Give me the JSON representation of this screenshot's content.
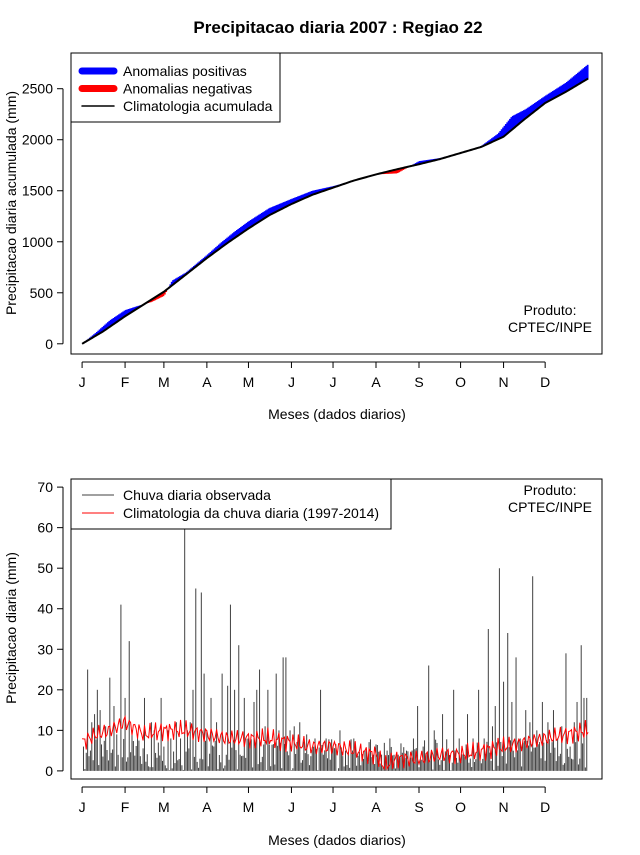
{
  "page_title": "Precipitacao diaria 2007 : Regiao 22",
  "chart_data": [
    {
      "type": "area",
      "name": "accumulated",
      "ylabel": "Precipitacao diaria acumulada (mm)",
      "xlabel": "Meses (dados diarios)",
      "month_labels": [
        "J",
        "F",
        "M",
        "A",
        "M",
        "J",
        "J",
        "A",
        "S",
        "O",
        "N",
        "D"
      ],
      "xlim": [
        -8,
        375
      ],
      "ylim": [
        -100,
        2850
      ],
      "yticks": [
        0,
        500,
        1000,
        1500,
        2000,
        2500
      ],
      "legend": {
        "position": "top-left",
        "items": [
          "Anomalias positivas",
          "Anomalias negativas",
          "Climatologia acumulada"
        ]
      },
      "annotation": [
        "Produto:",
        "CPTEC/INPE"
      ],
      "colors": {
        "positive": "#0000ff",
        "negative": "#ff0000",
        "climatology": "#000000"
      },
      "climatology_points": [
        [
          0,
          0
        ],
        [
          15,
          120
        ],
        [
          31,
          270
        ],
        [
          45,
          390
        ],
        [
          59,
          510
        ],
        [
          75,
          680
        ],
        [
          90,
          840
        ],
        [
          105,
          990
        ],
        [
          120,
          1130
        ],
        [
          135,
          1260
        ],
        [
          151,
          1370
        ],
        [
          166,
          1460
        ],
        [
          181,
          1530
        ],
        [
          196,
          1600
        ],
        [
          212,
          1660
        ],
        [
          227,
          1710
        ],
        [
          243,
          1760
        ],
        [
          258,
          1810
        ],
        [
          273,
          1870
        ],
        [
          288,
          1930
        ],
        [
          304,
          2030
        ],
        [
          319,
          2200
        ],
        [
          334,
          2360
        ],
        [
          349,
          2470
        ],
        [
          365,
          2600
        ]
      ],
      "observed_points": [
        [
          0,
          0
        ],
        [
          10,
          110
        ],
        [
          20,
          230
        ],
        [
          31,
          330
        ],
        [
          40,
          370
        ],
        [
          50,
          410
        ],
        [
          59,
          470
        ],
        [
          65,
          620
        ],
        [
          75,
          700
        ],
        [
          90,
          870
        ],
        [
          100,
          990
        ],
        [
          110,
          1100
        ],
        [
          120,
          1200
        ],
        [
          135,
          1330
        ],
        [
          151,
          1420
        ],
        [
          166,
          1500
        ],
        [
          181,
          1545
        ],
        [
          196,
          1600
        ],
        [
          212,
          1660
        ],
        [
          227,
          1670
        ],
        [
          243,
          1790
        ],
        [
          258,
          1820
        ],
        [
          273,
          1870
        ],
        [
          288,
          1940
        ],
        [
          300,
          2060
        ],
        [
          310,
          2230
        ],
        [
          320,
          2300
        ],
        [
          334,
          2430
        ],
        [
          349,
          2560
        ],
        [
          365,
          2740
        ]
      ]
    },
    {
      "type": "bar",
      "name": "daily",
      "ylabel": "Precipitacao diaria (mm)",
      "xlabel": "Meses (dados diarios)",
      "month_labels": [
        "J",
        "F",
        "M",
        "A",
        "M",
        "J",
        "J",
        "A",
        "S",
        "O",
        "N",
        "D"
      ],
      "xlim": [
        -8,
        375
      ],
      "ylim": [
        -2,
        72
      ],
      "yticks": [
        0,
        10,
        20,
        30,
        40,
        50,
        60,
        70
      ],
      "legend": {
        "position": "top-left",
        "items": [
          "Chuva diaria observada",
          "Climatologia da chuva diaria (1997-2014)"
        ]
      },
      "annotation": [
        "Produto:",
        "CPTEC/INPE"
      ],
      "colors": {
        "observed": "#404040",
        "climatology": "#ff0000"
      },
      "observed_peaks": [
        [
          1,
          6
        ],
        [
          4,
          25
        ],
        [
          7,
          12
        ],
        [
          9,
          14
        ],
        [
          11,
          20
        ],
        [
          13,
          15
        ],
        [
          17,
          11
        ],
        [
          20,
          23
        ],
        [
          23,
          16
        ],
        [
          25,
          9
        ],
        [
          28,
          41
        ],
        [
          31,
          18
        ],
        [
          34,
          32
        ],
        [
          36,
          10
        ],
        [
          40,
          8
        ],
        [
          45,
          18
        ],
        [
          50,
          12
        ],
        [
          52,
          10
        ],
        [
          57,
          18
        ],
        [
          59,
          6
        ],
        [
          62,
          10
        ],
        [
          64,
          8
        ],
        [
          68,
          12
        ],
        [
          71,
          8
        ],
        [
          74,
          60
        ],
        [
          76,
          10
        ],
        [
          78,
          12
        ],
        [
          80,
          20
        ],
        [
          82,
          45
        ],
        [
          86,
          44
        ],
        [
          88,
          24
        ],
        [
          90,
          10
        ],
        [
          93,
          18
        ],
        [
          97,
          12
        ],
        [
          101,
          24
        ],
        [
          105,
          21
        ],
        [
          107,
          41
        ],
        [
          110,
          20
        ],
        [
          113,
          31
        ],
        [
          117,
          18
        ],
        [
          120,
          8
        ],
        [
          124,
          17
        ],
        [
          126,
          20
        ],
        [
          128,
          25
        ],
        [
          132,
          11
        ],
        [
          134,
          20
        ],
        [
          140,
          24
        ],
        [
          142,
          10
        ],
        [
          145,
          28
        ],
        [
          147,
          28
        ],
        [
          150,
          10
        ],
        [
          153,
          11
        ],
        [
          157,
          12
        ],
        [
          162,
          9
        ],
        [
          168,
          8
        ],
        [
          172,
          20
        ],
        [
          176,
          8
        ],
        [
          181,
          6
        ],
        [
          186,
          10
        ],
        [
          190,
          5
        ],
        [
          196,
          8
        ],
        [
          204,
          5
        ],
        [
          210,
          4
        ],
        [
          216,
          4
        ],
        [
          222,
          8
        ],
        [
          228,
          4
        ],
        [
          234,
          5
        ],
        [
          239,
          8
        ],
        [
          242,
          16
        ],
        [
          246,
          6
        ],
        [
          250,
          26
        ],
        [
          254,
          10
        ],
        [
          260,
          14
        ],
        [
          264,
          5
        ],
        [
          268,
          20
        ],
        [
          272,
          8
        ],
        [
          278,
          14
        ],
        [
          282,
          8
        ],
        [
          286,
          20
        ],
        [
          290,
          8
        ],
        [
          293,
          35
        ],
        [
          296,
          11
        ],
        [
          298,
          16
        ],
        [
          301,
          50
        ],
        [
          304,
          22
        ],
        [
          307,
          34
        ],
        [
          310,
          17
        ],
        [
          313,
          28
        ],
        [
          316,
          8
        ],
        [
          320,
          15
        ],
        [
          323,
          12
        ],
        [
          325,
          48
        ],
        [
          328,
          10
        ],
        [
          332,
          17
        ],
        [
          336,
          12
        ],
        [
          340,
          15
        ],
        [
          343,
          8
        ],
        [
          346,
          11
        ],
        [
          349,
          29
        ],
        [
          352,
          6
        ],
        [
          355,
          12
        ],
        [
          357,
          17
        ],
        [
          360,
          31
        ],
        [
          362,
          18
        ],
        [
          364,
          18
        ]
      ],
      "climatology_points": [
        [
          0,
          7
        ],
        [
          10,
          9
        ],
        [
          20,
          10
        ],
        [
          31,
          12
        ],
        [
          45,
          9
        ],
        [
          59,
          10
        ],
        [
          75,
          10
        ],
        [
          90,
          9
        ],
        [
          105,
          8
        ],
        [
          120,
          8
        ],
        [
          135,
          8
        ],
        [
          151,
          7
        ],
        [
          166,
          6
        ],
        [
          181,
          6
        ],
        [
          196,
          5
        ],
        [
          212,
          4
        ],
        [
          218,
          1
        ],
        [
          227,
          3
        ],
        [
          243,
          3
        ],
        [
          258,
          4
        ],
        [
          273,
          4
        ],
        [
          288,
          5
        ],
        [
          304,
          6
        ],
        [
          319,
          7
        ],
        [
          334,
          8
        ],
        [
          349,
          9
        ],
        [
          365,
          10
        ]
      ]
    }
  ]
}
